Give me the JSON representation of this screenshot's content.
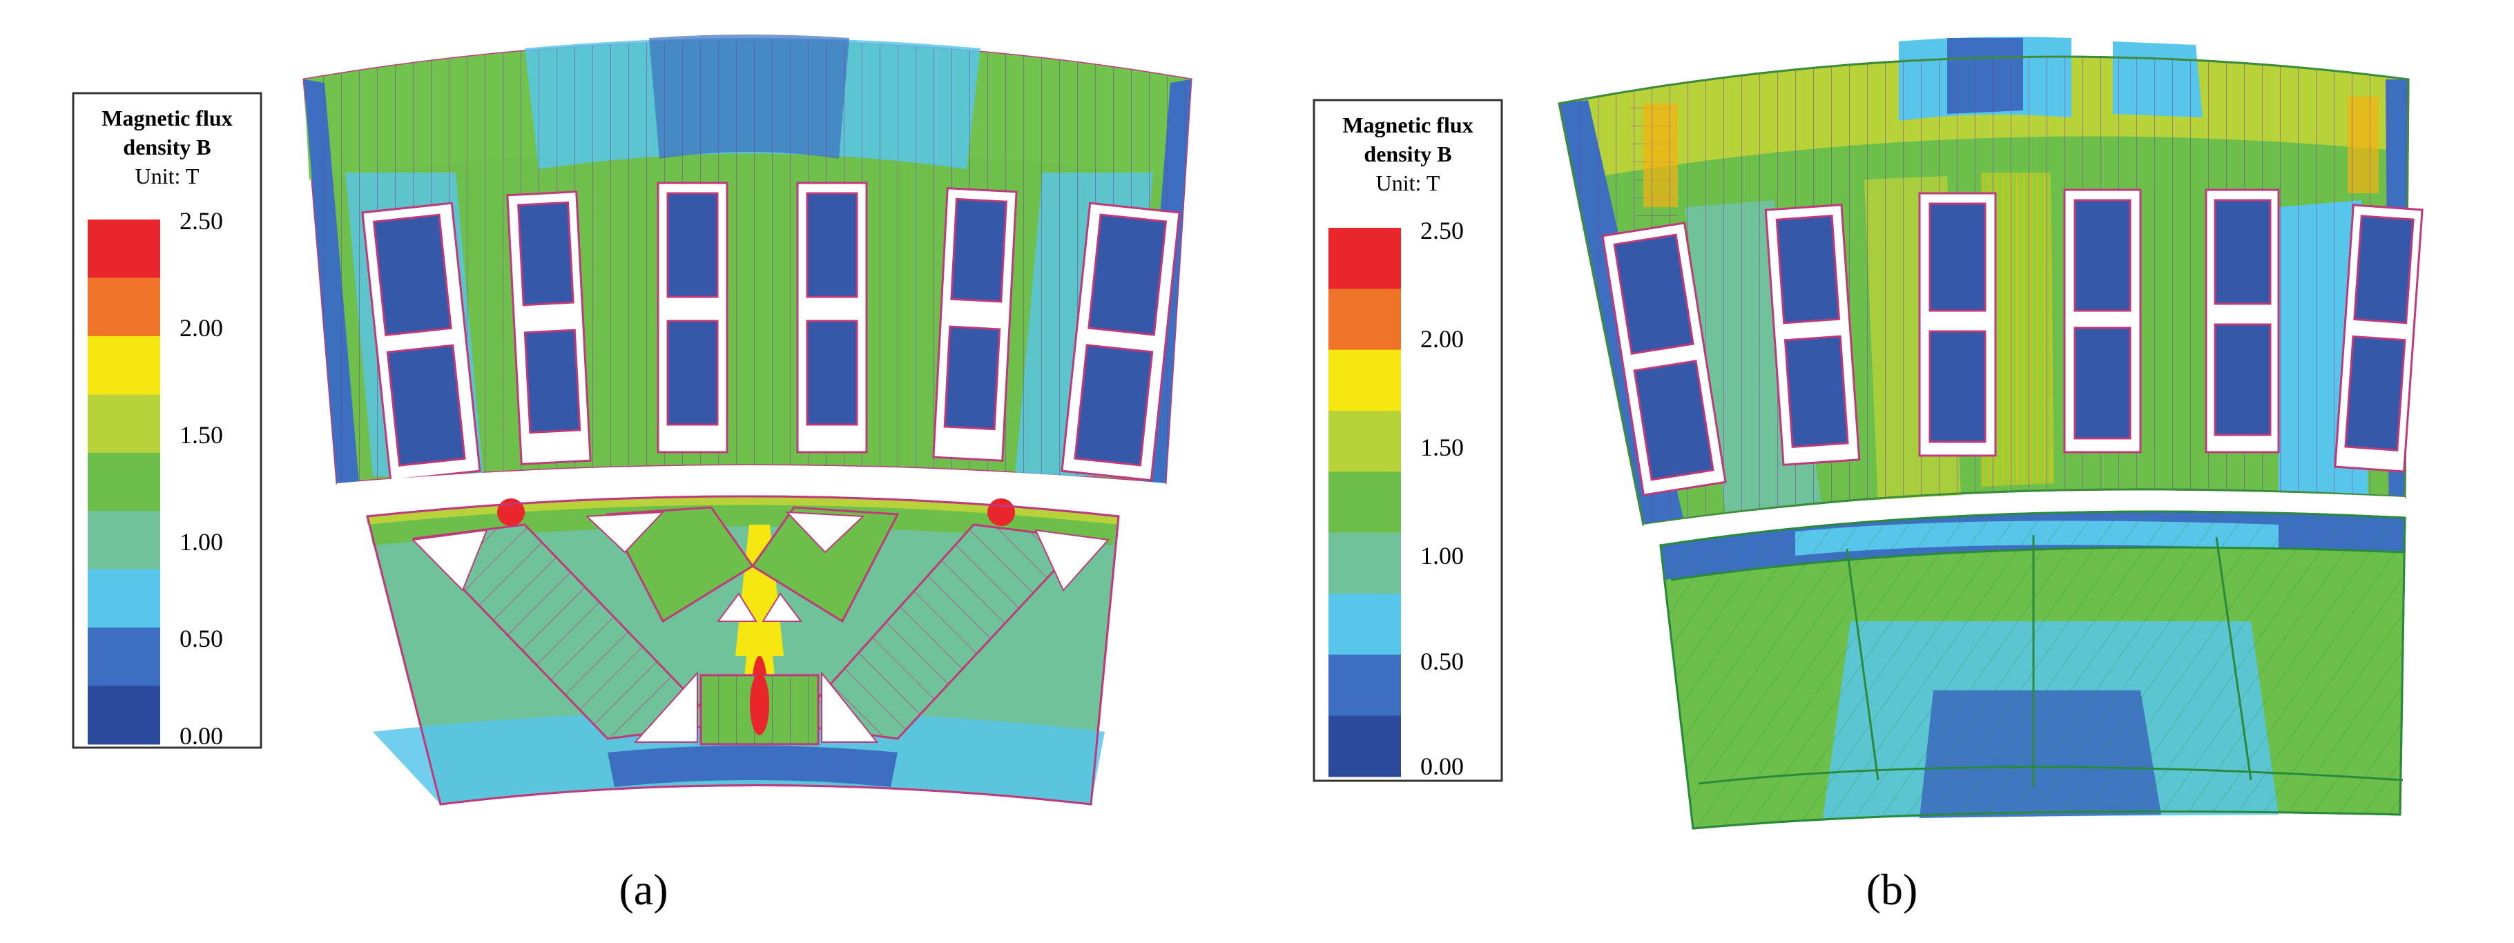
{
  "legend": {
    "title_line1": "Magnetic flux",
    "title_line2": "density B",
    "unit": "Unit: T",
    "ticks": [
      "2.50",
      "2.00",
      "1.50",
      "1.00",
      "0.50",
      "0.00"
    ],
    "band_colors": [
      "#e8262b",
      "#f07428",
      "#f5e70f",
      "#b8d23a",
      "#6bbf4a",
      "#6fc29a",
      "#58c6ea",
      "#3c6fbf",
      "#2b4a9b"
    ]
  },
  "panels": [
    {
      "label": "(a)"
    },
    {
      "label": "(b)"
    }
  ]
}
